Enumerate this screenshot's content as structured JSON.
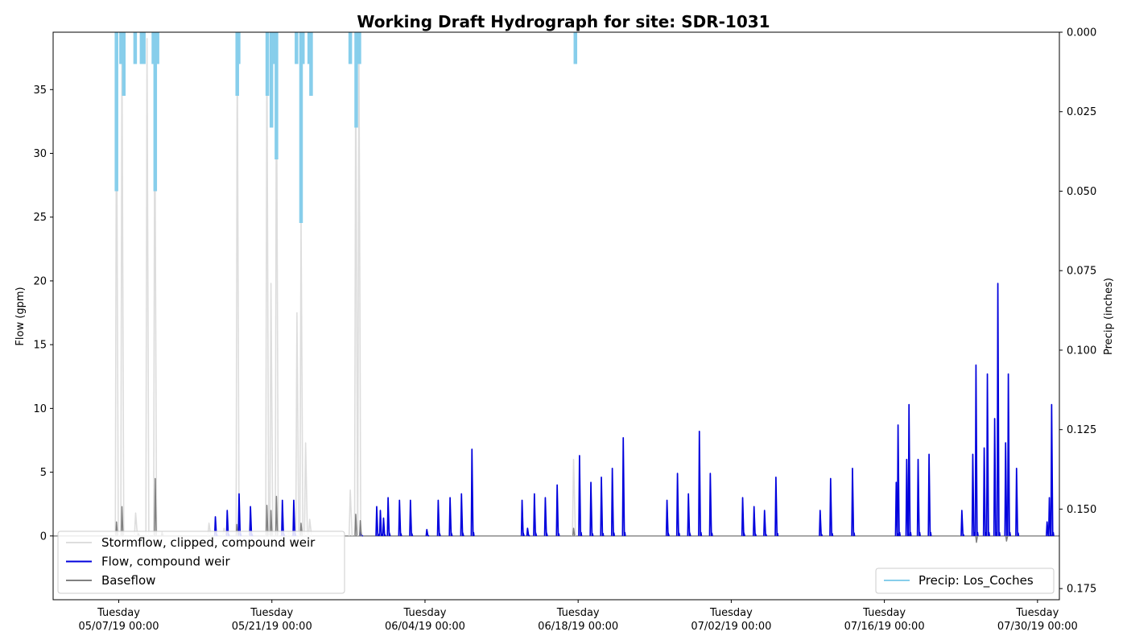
{
  "chart_data": {
    "type": "line",
    "title": "Working Draft Hydrograph for site: SDR-1031",
    "ylabel": "Flow (gpm)",
    "y2label": "Precip (inches)",
    "xlim": [
      "2019-05-01T00:00",
      "2019-08-01T00:00"
    ],
    "ylim": [
      -5,
      39.5
    ],
    "y2lim": [
      0.1785,
      0.0
    ],
    "y2_inverted": true,
    "grid": false,
    "yticks": [
      0,
      5,
      10,
      15,
      20,
      25,
      30,
      35
    ],
    "y2ticks": [
      0.0,
      0.025,
      0.05,
      0.075,
      0.1,
      0.125,
      0.15,
      0.175
    ],
    "xticks": [
      {
        "t": "2019-05-07T00:00",
        "day": "Tuesday",
        "date": "05/07/19 00:00"
      },
      {
        "t": "2019-05-21T00:00",
        "day": "Tuesday",
        "date": "05/21/19 00:00"
      },
      {
        "t": "2019-06-04T00:00",
        "day": "Tuesday",
        "date": "06/04/19 00:00"
      },
      {
        "t": "2019-06-18T00:00",
        "day": "Tuesday",
        "date": "06/18/19 00:00"
      },
      {
        "t": "2019-07-02T00:00",
        "day": "Tuesday",
        "date": "07/02/19 00:00"
      },
      {
        "t": "2019-07-16T00:00",
        "day": "Tuesday",
        "date": "07/16/19 00:00"
      },
      {
        "t": "2019-07-30T00:00",
        "day": "Tuesday",
        "date": "07/30/19 00:00"
      }
    ],
    "legend_left": {
      "placement": "lower-left",
      "entries": [
        "Stormflow, clipped, compound weir",
        "Flow, compound weir",
        "Baseflow"
      ]
    },
    "legend_right": {
      "placement": "lower-right",
      "entries": [
        "Precip: Los_Coches"
      ]
    },
    "colors": {
      "stormflow": "#dddddd",
      "flow": "#0000dd",
      "baseflow": "#808080",
      "precip": "#87ceeb"
    },
    "series": [
      {
        "name": "Stormflow, clipped, compound weir",
        "axis": "left",
        "peaks": [
          [
            "2019-05-06T19:00",
            37.5
          ],
          [
            "2019-05-07T07:00",
            38.5
          ],
          [
            "2019-05-08T13:00",
            1.8
          ],
          [
            "2019-05-09T14:00",
            39.0
          ],
          [
            "2019-05-10T07:00",
            36.0
          ],
          [
            "2019-05-15T06:00",
            1.0
          ],
          [
            "2019-05-16T15:00",
            0.6
          ],
          [
            "2019-05-17T20:00",
            39.0
          ],
          [
            "2019-05-19T00:00",
            1.2
          ],
          [
            "2019-05-20T13:00",
            39.0
          ],
          [
            "2019-05-20T22:00",
            19.8
          ],
          [
            "2019-05-21T10:00",
            39.0
          ],
          [
            "2019-05-22T13:00",
            0.3
          ],
          [
            "2019-05-23T07:00",
            17.5
          ],
          [
            "2019-05-23T16:00",
            25.0
          ],
          [
            "2019-05-24T02:00",
            7.3
          ],
          [
            "2019-05-24T11:00",
            1.3
          ],
          [
            "2019-05-28T04:00",
            3.6
          ],
          [
            "2019-05-28T16:00",
            38.0
          ],
          [
            "2019-05-28T23:00",
            39.0
          ],
          [
            "2019-06-17T14:00",
            6.0
          ]
        ]
      },
      {
        "name": "Flow, compound weir",
        "axis": "left",
        "peaks": [
          [
            "2019-05-15T20:00",
            1.5
          ],
          [
            "2019-05-16T22:00",
            2.0
          ],
          [
            "2019-05-18T00:00",
            3.3
          ],
          [
            "2019-05-19T01:00",
            2.3
          ],
          [
            "2019-05-21T23:00",
            2.8
          ],
          [
            "2019-05-23T00:00",
            2.8
          ],
          [
            "2019-05-29T03:00",
            0.3
          ],
          [
            "2019-05-30T14:00",
            2.3
          ],
          [
            "2019-05-30T22:00",
            2.0
          ],
          [
            "2019-05-31T05:00",
            1.4
          ],
          [
            "2019-05-31T15:00",
            3.0
          ],
          [
            "2019-06-01T16:00",
            2.8
          ],
          [
            "2019-06-02T16:00",
            2.8
          ],
          [
            "2019-06-04T04:00",
            0.5
          ],
          [
            "2019-06-05T05:00",
            2.8
          ],
          [
            "2019-06-06T07:00",
            3.0
          ],
          [
            "2019-06-07T08:00",
            3.3
          ],
          [
            "2019-06-08T07:00",
            6.8
          ],
          [
            "2019-06-12T21:00",
            2.8
          ],
          [
            "2019-06-13T09:00",
            0.6
          ],
          [
            "2019-06-14T00:00",
            3.3
          ],
          [
            "2019-06-15T00:00",
            3.0
          ],
          [
            "2019-06-16T02:00",
            4.0
          ],
          [
            "2019-06-18T03:00",
            6.3
          ],
          [
            "2019-06-19T04:00",
            4.2
          ],
          [
            "2019-06-20T03:00",
            4.6
          ],
          [
            "2019-06-21T03:00",
            5.3
          ],
          [
            "2019-06-22T03:00",
            7.7
          ],
          [
            "2019-06-26T03:00",
            2.8
          ],
          [
            "2019-06-27T02:00",
            4.9
          ],
          [
            "2019-06-28T02:00",
            3.3
          ],
          [
            "2019-06-29T02:00",
            8.2
          ],
          [
            "2019-06-30T02:00",
            4.9
          ],
          [
            "2019-07-03T01:00",
            3.0
          ],
          [
            "2019-07-04T02:00",
            2.3
          ],
          [
            "2019-07-05T01:00",
            2.0
          ],
          [
            "2019-07-06T02:00",
            4.6
          ],
          [
            "2019-07-10T03:00",
            2.0
          ],
          [
            "2019-07-11T02:00",
            4.5
          ],
          [
            "2019-07-13T02:00",
            5.3
          ],
          [
            "2019-07-17T02:00",
            4.2
          ],
          [
            "2019-07-17T06:00",
            8.7
          ],
          [
            "2019-07-18T01:00",
            6.0
          ],
          [
            "2019-07-18T06:00",
            10.3
          ],
          [
            "2019-07-19T02:00",
            6.0
          ],
          [
            "2019-07-20T02:00",
            6.4
          ],
          [
            "2019-07-23T02:00",
            2.0
          ],
          [
            "2019-07-24T02:00",
            6.4
          ],
          [
            "2019-07-24T09:00",
            13.4
          ],
          [
            "2019-07-25T03:00",
            6.9
          ],
          [
            "2019-07-25T10:00",
            12.7
          ],
          [
            "2019-07-26T02:00",
            9.2
          ],
          [
            "2019-07-26T09:00",
            19.8
          ],
          [
            "2019-07-27T02:00",
            7.3
          ],
          [
            "2019-07-27T08:00",
            12.7
          ],
          [
            "2019-07-28T02:00",
            5.3
          ],
          [
            "2019-07-30T21:00",
            1.1
          ],
          [
            "2019-07-31T02:00",
            3.0
          ],
          [
            "2019-07-31T07:00",
            10.3
          ],
          [
            "2019-08-01T02:00",
            11.4
          ]
        ]
      },
      {
        "name": "Baseflow",
        "axis": "left",
        "peaks": [
          [
            "2019-05-06T19:00",
            1.1
          ],
          [
            "2019-05-07T07:00",
            2.3
          ],
          [
            "2019-05-10T08:00",
            4.5
          ],
          [
            "2019-05-08T19:00",
            0.2
          ],
          [
            "2019-05-10T23:00",
            0.3
          ],
          [
            "2019-05-17T19:00",
            0.9
          ],
          [
            "2019-05-20T13:00",
            2.4
          ],
          [
            "2019-05-21T10:00",
            3.1
          ],
          [
            "2019-05-20T22:00",
            2.0
          ],
          [
            "2019-05-23T16:00",
            1.0
          ],
          [
            "2019-05-28T16:00",
            1.7
          ],
          [
            "2019-05-29T02:00",
            1.2
          ],
          [
            "2019-06-17T14:00",
            0.6
          ],
          [
            "2019-07-24T10:00",
            -0.5
          ],
          [
            "2019-07-27T04:00",
            -0.4
          ]
        ]
      },
      {
        "name": "Precip: Los_Coches",
        "axis": "right",
        "bars": [
          [
            "2019-05-06T19:00",
            0.05
          ],
          [
            "2019-05-07T05:00",
            0.01
          ],
          [
            "2019-05-07T11:00",
            0.02
          ],
          [
            "2019-05-08T12:00",
            0.01
          ],
          [
            "2019-05-09T02:00",
            0.01
          ],
          [
            "2019-05-09T07:00",
            0.01
          ],
          [
            "2019-05-10T04:00",
            0.01
          ],
          [
            "2019-05-10T08:00",
            0.05
          ],
          [
            "2019-05-10T13:00",
            0.01
          ],
          [
            "2019-05-20T14:00",
            0.02
          ],
          [
            "2019-05-20T23:00",
            0.03
          ],
          [
            "2019-05-21T04:00",
            0.01
          ],
          [
            "2019-05-21T10:00",
            0.04
          ],
          [
            "2019-05-17T20:00",
            0.02
          ],
          [
            "2019-05-17T23:00",
            0.01
          ],
          [
            "2019-05-23T06:00",
            0.01
          ],
          [
            "2019-05-23T16:00",
            0.06
          ],
          [
            "2019-05-23T20:00",
            0.01
          ],
          [
            "2019-05-24T14:00",
            0.02
          ],
          [
            "2019-05-24T10:00",
            0.01
          ],
          [
            "2019-05-28T04:00",
            0.01
          ],
          [
            "2019-05-28T17:00",
            0.03
          ],
          [
            "2019-05-29T00:00",
            0.01
          ],
          [
            "2019-06-17T18:00",
            0.01
          ]
        ]
      }
    ]
  }
}
